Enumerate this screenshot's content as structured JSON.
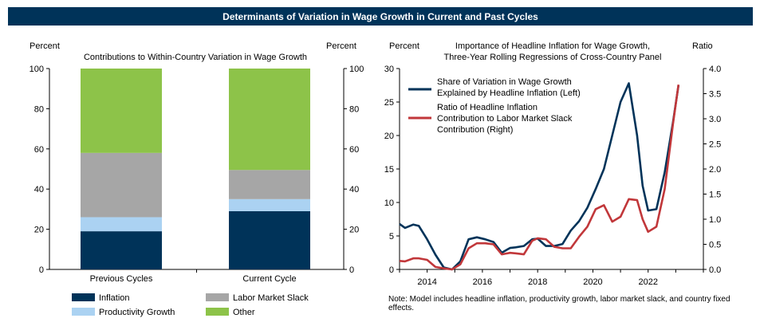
{
  "header": {
    "title": "Determinants of Variation in Wage Growth in Current and Past Cycles"
  },
  "chart_data": [
    {
      "type": "bar",
      "stacked": true,
      "title": "Contributions to Within-Country Variation in Wage Growth",
      "ylabel_left": "Percent",
      "ylabel_right": "Percent",
      "ylim": [
        0,
        100
      ],
      "yticks": [
        0,
        20,
        40,
        60,
        80,
        100
      ],
      "categories": [
        "Previous Cycles",
        "Current Cycle"
      ],
      "series": [
        {
          "name": "Inflation",
          "color": "#003359",
          "values": [
            19,
            29
          ]
        },
        {
          "name": "Productivity Growth",
          "color": "#abd2f2",
          "values": [
            7,
            6
          ]
        },
        {
          "name": "Labor Market Slack",
          "color": "#a6a6a6",
          "values": [
            32,
            14.5
          ]
        },
        {
          "name": "Other",
          "color": "#8dc349",
          "values": [
            42,
            50.5
          ]
        }
      ],
      "legend": "bottom"
    },
    {
      "type": "line",
      "title_line1": "Importance of Headline Inflation for Wage Growth,",
      "title_line2": "Three-Year Rolling Regressions of Cross-Country Panel",
      "ylabel_left": "Percent",
      "ylabel_right": "Ratio",
      "xlim": [
        2013,
        2024
      ],
      "xticks": [
        2014,
        2016,
        2018,
        2020,
        2022
      ],
      "ylim_left": [
        0,
        30
      ],
      "yticks_left": [
        0,
        5,
        10,
        15,
        20,
        25,
        30
      ],
      "ylim_right": [
        0,
        4
      ],
      "yticks_right": [
        "0.0",
        "0.5",
        "1.0",
        "1.5",
        "2.0",
        "2.5",
        "3.0",
        "3.5",
        "4.0"
      ],
      "series": [
        {
          "name_line1": "Share of Variation in Wage Growth",
          "name_line2": "Explained by Headline Inflation (Left)",
          "axis": "left",
          "color": "#003359",
          "x": [
            2013.0,
            2013.2,
            2013.5,
            2013.7,
            2014.0,
            2014.3,
            2014.6,
            2014.9,
            2015.2,
            2015.5,
            2015.8,
            2016.1,
            2016.4,
            2016.7,
            2017.0,
            2017.2,
            2017.5,
            2017.8,
            2018.0,
            2018.3,
            2018.6,
            2018.9,
            2019.2,
            2019.5,
            2019.8,
            2020.1,
            2020.4,
            2020.7,
            2021.0,
            2021.3,
            2021.6,
            2021.8,
            2022.0,
            2022.3,
            2022.6,
            2022.9,
            2023.1
          ],
          "y": [
            6.8,
            6.2,
            6.7,
            6.5,
            4.5,
            2.2,
            0.3,
            0.0,
            1.2,
            4.5,
            4.8,
            4.5,
            4.1,
            2.5,
            3.2,
            3.3,
            3.5,
            4.5,
            4.6,
            3.5,
            3.5,
            3.8,
            5.8,
            7.2,
            9.2,
            12.0,
            15.0,
            20.0,
            25.0,
            27.8,
            20.0,
            12.5,
            8.8,
            9.0,
            14.5,
            22.0,
            27.5
          ]
        },
        {
          "name_line1": "Ratio of Headline Inflation",
          "name_line2": "Contribution to Labor Market Slack",
          "name_line3": "Contribution (Right)",
          "axis": "right",
          "color": "#c1373a",
          "x": [
            2013.0,
            2013.2,
            2013.5,
            2013.7,
            2014.0,
            2014.3,
            2014.6,
            2014.9,
            2015.2,
            2015.5,
            2015.8,
            2016.1,
            2016.4,
            2016.7,
            2017.0,
            2017.2,
            2017.5,
            2017.8,
            2018.0,
            2018.3,
            2018.6,
            2018.9,
            2019.2,
            2019.5,
            2019.8,
            2020.1,
            2020.4,
            2020.7,
            2021.0,
            2021.3,
            2021.6,
            2021.8,
            2022.0,
            2022.3,
            2022.6,
            2022.9,
            2023.1
          ],
          "y": [
            0.17,
            0.16,
            0.22,
            0.22,
            0.19,
            0.05,
            0.02,
            0.0,
            0.1,
            0.42,
            0.52,
            0.52,
            0.5,
            0.3,
            0.33,
            0.32,
            0.3,
            0.57,
            0.62,
            0.6,
            0.45,
            0.42,
            0.42,
            0.65,
            0.85,
            1.2,
            1.28,
            0.95,
            1.05,
            1.4,
            1.38,
            1.0,
            0.75,
            0.85,
            1.6,
            2.9,
            3.68
          ]
        }
      ],
      "legend": "top-left",
      "note": "Note: Model includes headline inflation, productivity growth, labor market slack, and country fixed effects."
    }
  ]
}
